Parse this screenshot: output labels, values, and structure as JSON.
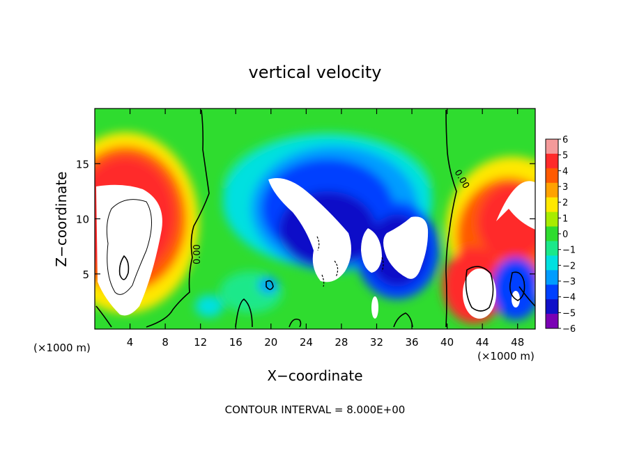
{
  "chart_data": {
    "type": "heatmap",
    "title": "vertical velocity",
    "xlabel": "X−coordinate",
    "ylabel": "Z−coordinate",
    "x_unit": "(×1000 m)",
    "xlim": [
      0,
      50
    ],
    "ylim": [
      0,
      20
    ],
    "xticks": [
      "4",
      "8",
      "12",
      "16",
      "20",
      "24",
      "28",
      "32",
      "36",
      "40",
      "44",
      "48"
    ],
    "yticks": [
      "5",
      "10",
      "15"
    ],
    "colorbar": {
      "labels": [
        "6",
        "5",
        "4",
        "3",
        "2",
        "1",
        "0",
        "−1",
        "−2",
        "−3",
        "−4",
        "−5",
        "−6"
      ],
      "range": [
        -6,
        6
      ],
      "colors": [
        "#f49a9a",
        "#ff2a2a",
        "#ff5a00",
        "#ffa200",
        "#ffe800",
        "#a8ec00",
        "#2fdc2f",
        "#1ae88a",
        "#00e0e0",
        "#009cff",
        "#0040ff",
        "#1010c8",
        "#7a00b4"
      ]
    },
    "contour_label": "0.00",
    "footnote": "CONTOUR INTERVAL = 8.000E+00",
    "grid": false
  }
}
